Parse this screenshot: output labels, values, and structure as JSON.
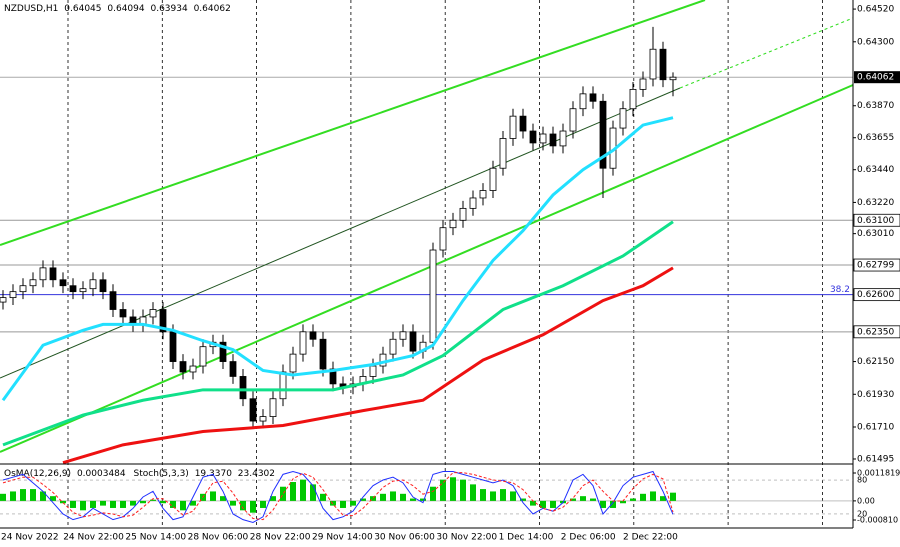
{
  "chart_data": {
    "type": "candlestick",
    "symbol": "NZDUSD,H1",
    "ylim": [
      0.61468,
      0.64581
    ],
    "yticks": [
      {
        "value": 0.6452,
        "label": "0.64520"
      },
      {
        "value": 0.643,
        "label": "0.64300"
      },
      {
        "value": 0.6387,
        "label": "0.63870"
      },
      0.63655,
      {
        "value": 0.6344,
        "label": "0.63440"
      },
      {
        "value": 0.6322,
        "label": "0.63220"
      },
      {
        "value": 0.6301,
        "label": "0.63010"
      },
      {
        "value": 0.6215,
        "label": "0.62150"
      },
      {
        "value": 0.6193,
        "label": "0.61930"
      },
      {
        "value": 0.6171,
        "label": "0.61710"
      },
      0.61495
    ],
    "open": [
      0.6255,
      0.6258,
      0.6262,
      0.6266,
      0.627,
      0.6278,
      0.627,
      0.6266,
      0.6262,
      0.6264,
      0.627,
      0.6262,
      0.625,
      0.6245,
      0.624,
      0.6245,
      0.625,
      0.6235,
      0.6215,
      0.6208,
      0.6212,
      0.6225,
      0.6228,
      0.6215,
      0.6205,
      0.619,
      0.6175,
      0.6178,
      0.619,
      0.6208,
      0.622,
      0.6235,
      0.623,
      0.621,
      0.62,
      0.6198,
      0.62,
      0.6205,
      0.6212,
      0.622,
      0.623,
      0.6235,
      0.6222,
      0.6228,
      0.629,
      0.6305,
      0.631,
      0.6318,
      0.6325,
      0.633,
      0.6345,
      0.6365,
      0.638,
      0.637,
      0.6362,
      0.6368,
      0.636,
      0.637,
      0.6385,
      0.6395,
      0.639,
      0.6345,
      0.6372,
      0.6385,
      0.6398,
      0.6405,
      0.6425,
      0.64045
    ],
    "high": [
      0.6263,
      0.6267,
      0.6271,
      0.6275,
      0.6283,
      0.6283,
      0.6275,
      0.6271,
      0.6269,
      0.6275,
      0.6275,
      0.6267,
      0.6255,
      0.625,
      0.625,
      0.6255,
      0.6255,
      0.624,
      0.622,
      0.6217,
      0.623,
      0.6233,
      0.6233,
      0.622,
      0.621,
      0.6195,
      0.6183,
      0.6195,
      0.6213,
      0.6225,
      0.624,
      0.624,
      0.6235,
      0.6215,
      0.6205,
      0.6205,
      0.621,
      0.6217,
      0.6225,
      0.6235,
      0.624,
      0.624,
      0.6233,
      0.6295,
      0.631,
      0.6315,
      0.6323,
      0.633,
      0.6335,
      0.635,
      0.637,
      0.6385,
      0.6385,
      0.6375,
      0.6373,
      0.6373,
      0.6375,
      0.639,
      0.64,
      0.64,
      0.6395,
      0.6377,
      0.639,
      0.6403,
      0.641,
      0.644,
      0.643,
      0.64094
    ],
    "low": [
      0.625,
      0.6253,
      0.6257,
      0.6261,
      0.6265,
      0.6265,
      0.6261,
      0.6257,
      0.6257,
      0.6259,
      0.6257,
      0.6245,
      0.624,
      0.6235,
      0.6235,
      0.624,
      0.623,
      0.621,
      0.6203,
      0.6203,
      0.6207,
      0.622,
      0.621,
      0.62,
      0.6185,
      0.617,
      0.617,
      0.6173,
      0.6185,
      0.6203,
      0.6215,
      0.6225,
      0.6205,
      0.6195,
      0.6193,
      0.6193,
      0.6195,
      0.62,
      0.6207,
      0.6215,
      0.6225,
      0.6217,
      0.6217,
      0.6223,
      0.6285,
      0.63,
      0.6305,
      0.6313,
      0.632,
      0.6325,
      0.634,
      0.636,
      0.6365,
      0.6357,
      0.6357,
      0.6355,
      0.6355,
      0.6365,
      0.638,
      0.6385,
      0.6325,
      0.634,
      0.6367,
      0.638,
      0.6393,
      0.64,
      0.63995,
      0.63934
    ],
    "close": [
      0.6258,
      0.6262,
      0.6266,
      0.627,
      0.6278,
      0.627,
      0.6266,
      0.6262,
      0.6264,
      0.627,
      0.6262,
      0.625,
      0.6245,
      0.624,
      0.6245,
      0.625,
      0.6235,
      0.6215,
      0.6208,
      0.6212,
      0.6225,
      0.6228,
      0.6215,
      0.6205,
      0.619,
      0.6175,
      0.6178,
      0.619,
      0.6208,
      0.622,
      0.6235,
      0.623,
      0.621,
      0.62,
      0.6198,
      0.62,
      0.6205,
      0.6212,
      0.622,
      0.623,
      0.6235,
      0.6222,
      0.6228,
      0.629,
      0.6305,
      0.631,
      0.6318,
      0.6325,
      0.633,
      0.6345,
      0.6365,
      0.638,
      0.637,
      0.6362,
      0.6368,
      0.636,
      0.637,
      0.6385,
      0.6395,
      0.639,
      0.6345,
      0.6372,
      0.6385,
      0.6398,
      0.6405,
      0.6425,
      0.64045,
      0.64062
    ],
    "time_labels": [
      "24 Nov 2022",
      "24 Nov 22:00",
      "25 Nov 14:00",
      "28 Nov 06:00",
      "28 Nov 22:00",
      "29 Nov 14:00",
      "30 Nov 06:00",
      "30 Nov 22:00",
      "1 Dec 14:00",
      "2 Dec 06:00",
      "2 Dec 22:00"
    ],
    "moving_averages": [
      {
        "color": "#22e0ff",
        "x": [
          0,
          4,
          8,
          10,
          14,
          17,
          20,
          23,
          26,
          29,
          33,
          37,
          41,
          43,
          46,
          49,
          52,
          55,
          58,
          61,
          64,
          67
        ],
        "values": [
          0.6189,
          0.6226,
          0.6236,
          0.624,
          0.624,
          0.6236,
          0.6229,
          0.6223,
          0.6209,
          0.6206,
          0.6209,
          0.6213,
          0.6219,
          0.6226,
          0.6256,
          0.6283,
          0.6303,
          0.6327,
          0.6344,
          0.6357,
          0.6374,
          0.6379
        ]
      },
      {
        "color": "#10e08a",
        "x": [
          0,
          8,
          14,
          20,
          26,
          33,
          40,
          44,
          50,
          56,
          62,
          67
        ],
        "values": [
          0.6159,
          0.6179,
          0.6189,
          0.6196,
          0.6196,
          0.6196,
          0.6206,
          0.6219,
          0.625,
          0.6266,
          0.6286,
          0.6309
        ]
      },
      {
        "color": "#ee1111",
        "x": [
          6,
          12,
          20,
          28,
          36,
          42,
          48,
          54,
          60,
          64,
          67
        ],
        "values": [
          0.6147,
          0.6159,
          0.6168,
          0.6172,
          0.6182,
          0.6189,
          0.6216,
          0.6233,
          0.6256,
          0.6266,
          0.6278
        ]
      }
    ],
    "levels": [
      {
        "value": 0.631,
        "label": "0.63100"
      },
      0.62799,
      {
        "value": 0.626,
        "label": "0.62600",
        "fib": 38.2
      },
      {
        "value": 0.6235,
        "label": "0.62350"
      }
    ],
    "oscillator": {
      "osma_name": "OsMA(12,26,9)",
      "osma_color": "#00c800",
      "osma": [
        0.0003,
        0.0004,
        0.0005,
        0.0005,
        0.0004,
        0.0002,
        -0.0001,
        -0.0003,
        -0.0004,
        -0.0003,
        -0.0002,
        -0.0003,
        -0.0003,
        -0.0002,
        -0.0001,
        5e-05,
        -0.0001,
        -0.0003,
        -0.0004,
        -0.0002,
        0.0003,
        0.0004,
        0.0002,
        -0.0002,
        -0.0004,
        -0.0005,
        -0.0003,
        0.0002,
        0.0006,
        0.0008,
        0.0009,
        0.0007,
        0.0003,
        -0.0002,
        -0.0003,
        -0.0002,
        0.0001,
        0.0002,
        0.0003,
        0.0004,
        0.0003,
        0.0001,
        0.0001,
        0.0006,
        0.0009,
        0.001,
        0.0009,
        0.0007,
        0.0005,
        0.0004,
        0.0005,
        0.0004,
        0.0001,
        -0.0002,
        -0.0003,
        -0.0003,
        -0.0001,
        0.0001,
        0.0002,
        0.0001,
        -0.0003,
        -0.0003,
        -0.0001,
        0.0001,
        0.0003,
        0.0004,
        0.0002,
        0.0003484
      ],
      "osma_ylim": [
        -0.00081,
        0.0011819
      ],
      "osma_ticks": [
        0.0011819,
        {
          "value": 0,
          "label": "0.00"
        },
        {
          "value": -0.00081,
          "label": "-0.000810"
        }
      ],
      "stoch_name": "Stoch(5,3,3)",
      "stoch_colors": [
        "#2030ff",
        "#ff2020"
      ],
      "stoch_ylim": [
        0,
        100
      ],
      "stoch_ticks": [
        80,
        20
      ],
      "stoch_main": [
        80,
        85,
        90,
        75,
        60,
        40,
        20,
        10,
        15,
        30,
        20,
        10,
        15,
        30,
        50,
        60,
        30,
        10,
        15,
        50,
        85,
        90,
        60,
        20,
        10,
        5,
        15,
        60,
        90,
        95,
        90,
        70,
        30,
        10,
        15,
        25,
        50,
        70,
        80,
        85,
        75,
        50,
        40,
        90,
        95,
        95,
        90,
        85,
        80,
        75,
        80,
        70,
        40,
        20,
        30,
        25,
        40,
        80,
        90,
        70,
        20,
        40,
        70,
        85,
        90,
        95,
        60,
        19.337
      ],
      "stoch_signal": [
        75,
        80,
        85,
        85,
        72,
        58,
        40,
        23,
        15,
        18,
        22,
        20,
        15,
        18,
        32,
        47,
        47,
        33,
        18,
        25,
        50,
        75,
        78,
        57,
        30,
        12,
        10,
        27,
        55,
        82,
        92,
        85,
        63,
        37,
        18,
        17,
        30,
        48,
        67,
        78,
        80,
        70,
        55,
        60,
        75,
        93,
        93,
        90,
        85,
        80,
        78,
        75,
        63,
        43,
        30,
        25,
        32,
        48,
        70,
        80,
        60,
        43,
        43,
        65,
        82,
        90,
        82,
        23.4302
      ],
      "stoch_labels": [
        "19.3370",
        "23.4302"
      ]
    }
  }
}
